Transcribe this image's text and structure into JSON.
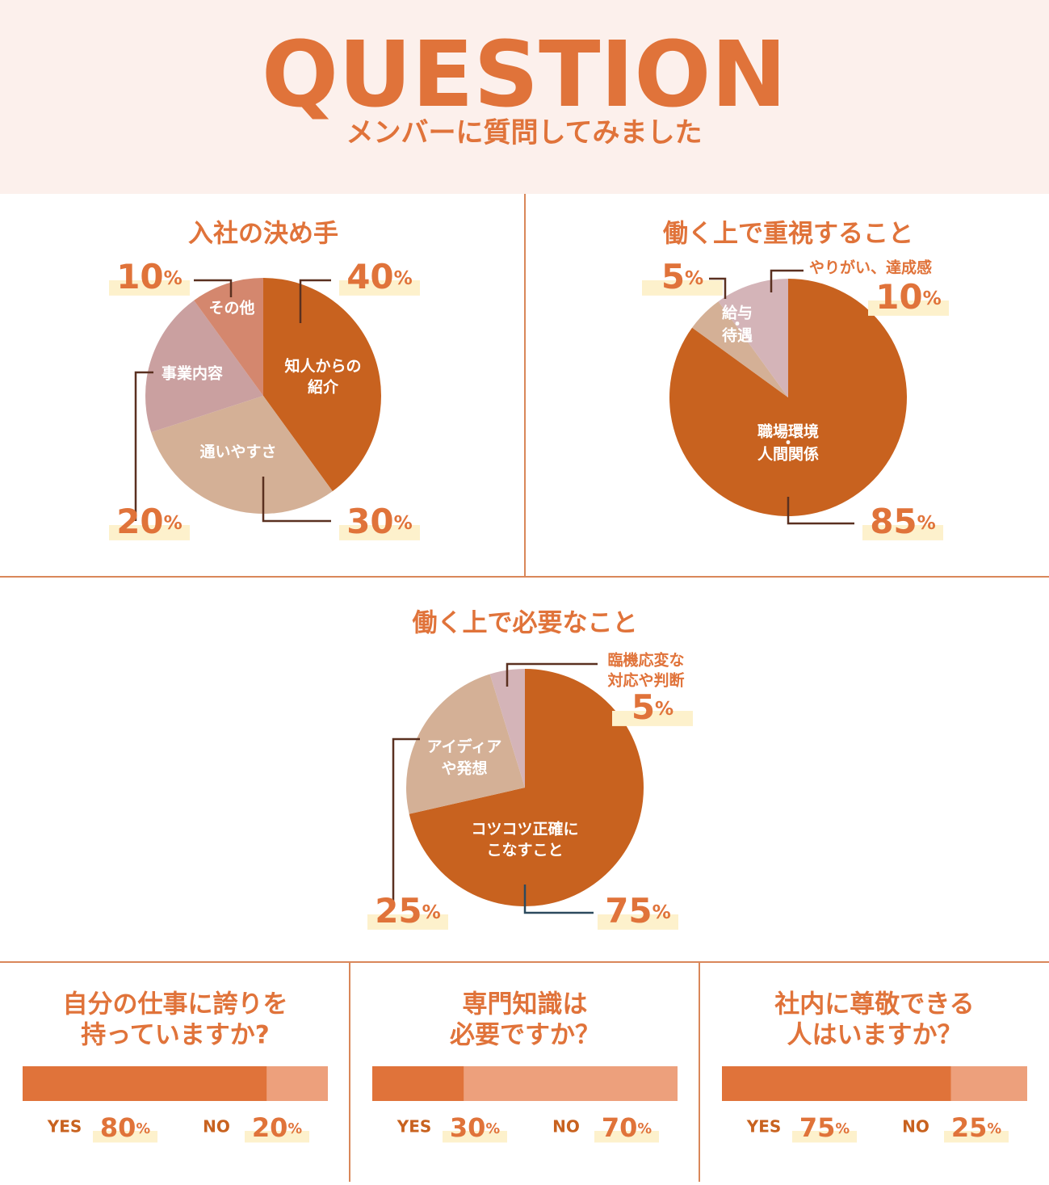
{
  "header": {
    "title": "QUESTION",
    "subtitle": "メンバーに質問してみました"
  },
  "chart_data": [
    {
      "type": "pie",
      "title": "入社の決め手",
      "unit": "%",
      "categories": [
        [
          "知人からの",
          "紹介"
        ],
        [
          "通いやすさ"
        ],
        [
          "事業内容"
        ],
        [
          "その他"
        ]
      ],
      "values": [
        40,
        30,
        20,
        10
      ],
      "colors": [
        "#c8621f",
        "#d4b096",
        "#caa0a0",
        "#d4876e"
      ]
    },
    {
      "type": "pie",
      "title": "働く上で重視すること",
      "unit": "%",
      "categories": [
        [
          "職場環境",
          "・",
          "人間関係"
        ],
        [
          "給与",
          "・",
          "待遇"
        ],
        [
          "やりがい、達成感"
        ]
      ],
      "values": [
        85,
        5,
        10
      ],
      "colors": [
        "#c8621f",
        "#d4b096",
        "#d4b4b8"
      ]
    },
    {
      "type": "pie",
      "title": "働く上で必要なこと",
      "unit": "%",
      "categories": [
        [
          "コツコツ正確に",
          "こなすこと"
        ],
        [
          "アイディア",
          "や発想"
        ],
        [
          "臨機応変な",
          "対応や判断"
        ]
      ],
      "values": [
        75,
        25,
        5
      ],
      "colors": [
        "#c8621f",
        "#d4b096",
        "#d4b4b8"
      ]
    },
    {
      "type": "bar",
      "title": [
        "自分の仕事に誇りを",
        "持っていますか?"
      ],
      "unit": "%",
      "categories": [
        "YES",
        "NO"
      ],
      "values": [
        80,
        20
      ],
      "colors": [
        "#e0733a",
        "#eda07c"
      ],
      "xlim": [
        0,
        100
      ]
    },
    {
      "type": "bar",
      "title": [
        "専門知識は",
        "必要ですか？"
      ],
      "unit": "%",
      "categories": [
        "YES",
        "NO"
      ],
      "values": [
        30,
        70
      ],
      "colors": [
        "#e0733a",
        "#eda07c"
      ],
      "xlim": [
        0,
        100
      ]
    },
    {
      "type": "bar",
      "title": [
        "社内に尊敬できる",
        "人はいますか？"
      ],
      "unit": "%",
      "categories": [
        "YES",
        "NO"
      ],
      "values": [
        75,
        25
      ],
      "colors": [
        "#e0733a",
        "#eda07c"
      ],
      "xlim": [
        0,
        100
      ]
    }
  ]
}
